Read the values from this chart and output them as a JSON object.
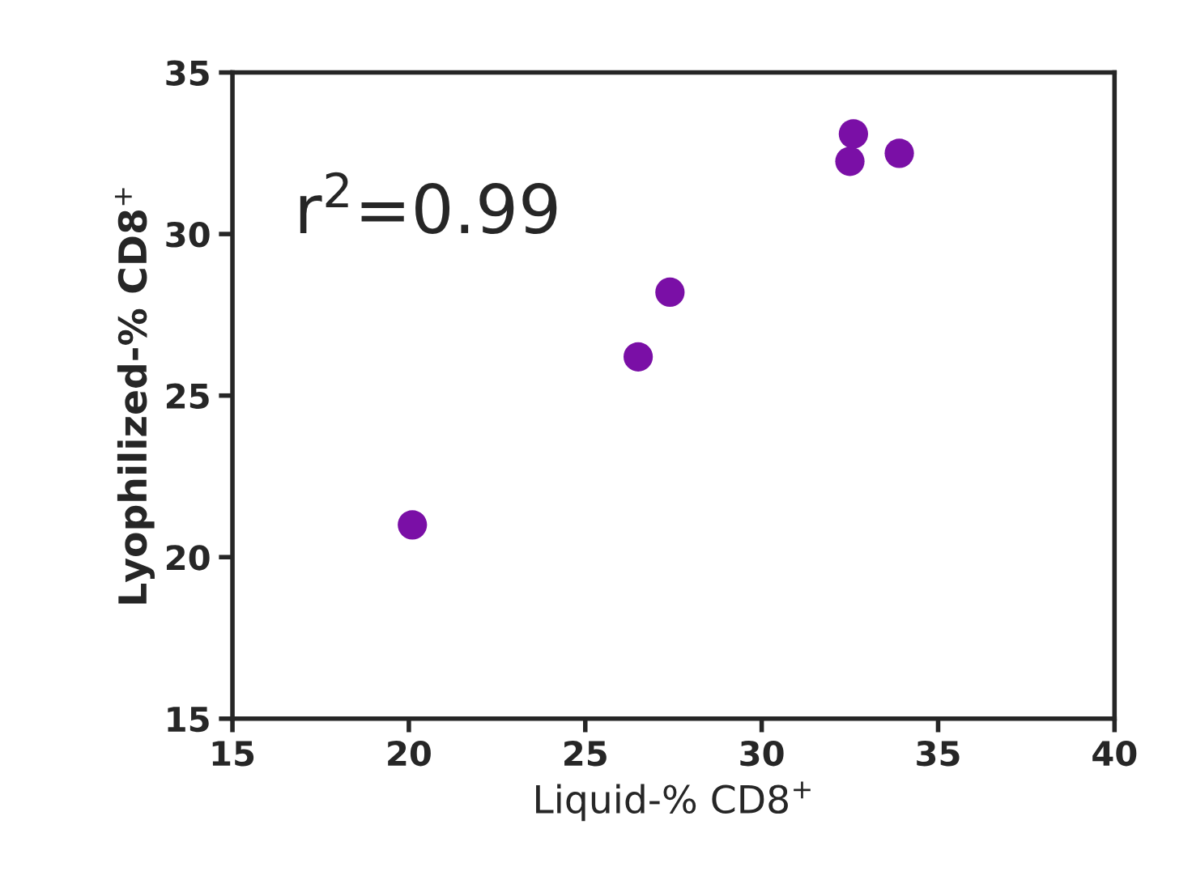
{
  "chart_data": {
    "type": "scatter",
    "xlabel": "Liquid-% CD8$^{+}$",
    "ylabel": "Lyophilized-% CD8$^{+}$",
    "x": [
      20.1,
      26.5,
      27.4,
      32.5,
      32.6,
      33.9
    ],
    "series": [
      {
        "color": "#7a0fa6",
        "values": [
          21.0,
          26.2,
          28.2,
          32.25,
          33.1,
          32.5
        ]
      }
    ],
    "xlim": [
      15,
      40
    ],
    "xticks": [
      15,
      20,
      25,
      30,
      35,
      40
    ],
    "ylim": [
      15,
      35
    ],
    "yticks": [
      15,
      20,
      25,
      30,
      35
    ],
    "marker": "circle",
    "grid": false,
    "legend": false,
    "annotations": [
      "r$^{2}$=0.99"
    ]
  }
}
